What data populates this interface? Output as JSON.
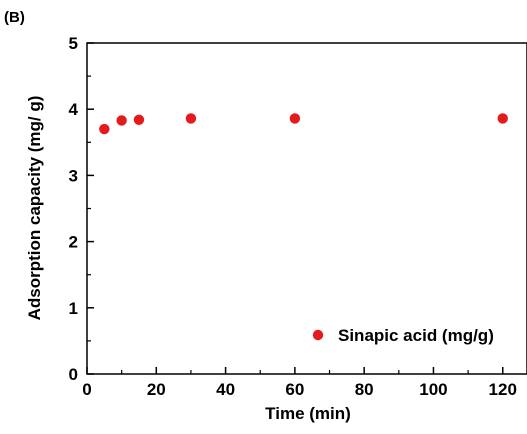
{
  "panel_label": "(B)",
  "chart_data": {
    "type": "scatter",
    "xlabel": "Time (min)",
    "ylabel": "Adsorption capacity (mg/ g)",
    "xlim": [
      0,
      127
    ],
    "ylim": [
      0,
      5
    ],
    "xticks": [
      0,
      20,
      40,
      60,
      80,
      100,
      120
    ],
    "yticks": [
      0,
      1,
      2,
      3,
      4,
      5
    ],
    "grid": false,
    "legend_position": "bottom-right",
    "series": [
      {
        "name": "Sinapic acid (mg/g)",
        "color": "#e41a1c",
        "marker": "circle",
        "x": [
          5,
          10,
          15,
          30,
          60,
          120
        ],
        "y": [
          3.7,
          3.83,
          3.84,
          3.86,
          3.86,
          3.86
        ]
      }
    ]
  }
}
